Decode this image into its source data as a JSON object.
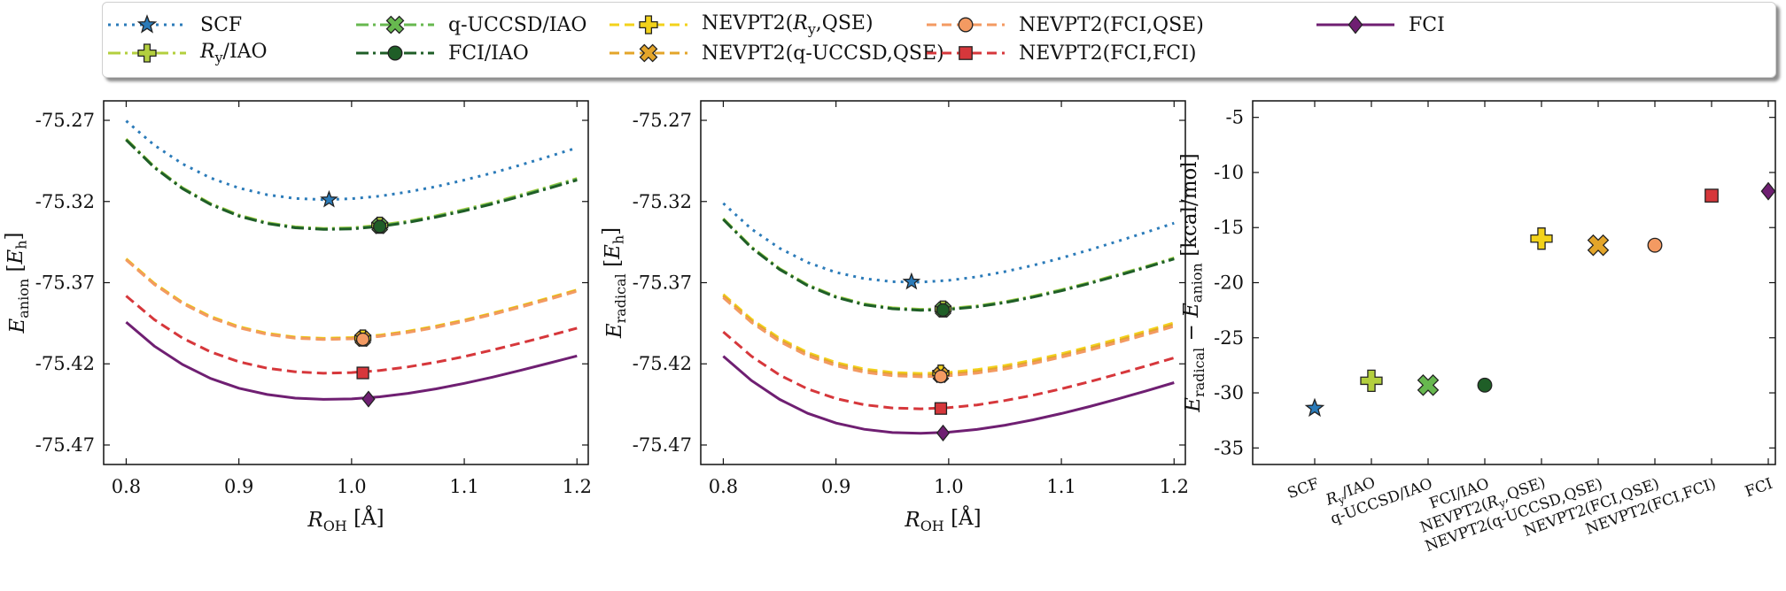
{
  "legend": {
    "entries": [
      {
        "key": "scf",
        "label": "SCF",
        "color": "#2b7bb9",
        "dash": "3,6",
        "marker": "star"
      },
      {
        "key": "ry_iao",
        "label": "Ry/IAO",
        "color": "#b3cf3e",
        "dash": "14,5,3,5",
        "marker": "plus"
      },
      {
        "key": "quccsd_iao",
        "label": "q-UCCSD/IAO",
        "color": "#67b84f",
        "dash": "14,5,3,5",
        "marker": "x"
      },
      {
        "key": "fci_iao",
        "label": "FCI/IAO",
        "color": "#1f5e27",
        "dash": "14,5,3,5",
        "marker": "circle"
      },
      {
        "key": "nevpt2_ry_qse",
        "label": "NEVPT2(Ry,QSE)",
        "color": "#f2d21b",
        "dash": "11,6",
        "marker": "plus"
      },
      {
        "key": "nevpt2_quccsd_qse",
        "label": "NEVPT2(q-UCCSD,QSE)",
        "color": "#e3a52a",
        "dash": "11,6",
        "marker": "x"
      },
      {
        "key": "nevpt2_fci_qse",
        "label": "NEVPT2(FCI,QSE)",
        "color": "#f39a62",
        "dash": "11,6",
        "marker": "circle"
      },
      {
        "key": "nevpt2_fci_fci",
        "label": "NEVPT2(FCI,FCI)",
        "color": "#d6373b",
        "dash": "11,6",
        "marker": "square"
      },
      {
        "key": "fci",
        "label": "FCI",
        "color": "#6f1f72",
        "dash": "",
        "marker": "diamond"
      }
    ]
  },
  "chart_data": [
    {
      "type": "line",
      "id": "anion",
      "xlabel": "ROH [Å]",
      "ylabel": "Eanion [Eh]",
      "xlim": [
        0.78,
        1.21
      ],
      "ylim": [
        -75.482,
        -75.258
      ],
      "xticks": [
        {
          "v": 0.8,
          "label": "0.8"
        },
        {
          "v": 0.9,
          "label": "0.9"
        },
        {
          "v": 1.0,
          "label": "1.0"
        },
        {
          "v": 1.1,
          "label": "1.1"
        },
        {
          "v": 1.2,
          "label": "1.2"
        }
      ],
      "yticks": [
        {
          "v": -75.27,
          "label": "-75.27"
        },
        {
          "v": -75.32,
          "label": "-75.32"
        },
        {
          "v": -75.37,
          "label": "-75.37"
        },
        {
          "v": -75.42,
          "label": "-75.42"
        },
        {
          "v": -75.47,
          "label": "-75.47"
        }
      ],
      "x": [
        0.8,
        0.825,
        0.85,
        0.875,
        0.9,
        0.925,
        0.95,
        0.975,
        1.0,
        1.025,
        1.05,
        1.075,
        1.1,
        1.125,
        1.15,
        1.175,
        1.2
      ],
      "series": [
        {
          "key": "scf",
          "values": [
            -75.2703,
            -75.2853,
            -75.2968,
            -75.3055,
            -75.3117,
            -75.3158,
            -75.3181,
            -75.3189,
            -75.3183,
            -75.3167,
            -75.3141,
            -75.3108,
            -75.3068,
            -75.3024,
            -75.2975,
            -75.2923,
            -75.2869
          ],
          "marker": {
            "x": 0.98,
            "y": -75.3189
          }
        },
        {
          "key": "ry_iao",
          "values": [
            -75.2815,
            -75.2985,
            -75.3115,
            -75.3213,
            -75.3283,
            -75.333,
            -75.3356,
            -75.3366,
            -75.3362,
            -75.3346,
            -75.3321,
            -75.3288,
            -75.3249,
            -75.3206,
            -75.3159,
            -75.3109,
            -75.3058
          ],
          "marker": {
            "x": 1.025,
            "y": -75.3346
          }
        },
        {
          "key": "quccsd_iao",
          "values": [
            -75.2818,
            -75.2988,
            -75.3118,
            -75.3216,
            -75.3287,
            -75.3333,
            -75.3359,
            -75.3369,
            -75.3365,
            -75.335,
            -75.3325,
            -75.3292,
            -75.3253,
            -75.321,
            -75.3163,
            -75.3113,
            -75.3062
          ],
          "marker": {
            "x": 1.025,
            "y": -75.335
          }
        },
        {
          "key": "fci_iao",
          "values": [
            -75.2821,
            -75.2991,
            -75.3121,
            -75.3219,
            -75.329,
            -75.3336,
            -75.3362,
            -75.3372,
            -75.3369,
            -75.3354,
            -75.3329,
            -75.3296,
            -75.3258,
            -75.3215,
            -75.3168,
            -75.3119,
            -75.3068
          ],
          "marker": {
            "x": 1.025,
            "y": -75.3354
          }
        },
        {
          "key": "nevpt2_ry_qse",
          "values": [
            -75.3553,
            -75.3704,
            -75.3821,
            -75.3908,
            -75.3971,
            -75.4012,
            -75.4035,
            -75.4043,
            -75.4038,
            -75.4023,
            -75.3999,
            -75.3967,
            -75.393,
            -75.3888,
            -75.3842,
            -75.3794,
            -75.3744
          ],
          "marker": {
            "x": 1.01,
            "y": -75.4041
          }
        },
        {
          "key": "nevpt2_quccsd_qse",
          "values": [
            -75.3557,
            -75.3708,
            -75.3825,
            -75.3913,
            -75.3975,
            -75.4016,
            -75.4039,
            -75.4047,
            -75.4042,
            -75.4027,
            -75.4003,
            -75.3971,
            -75.3934,
            -75.3892,
            -75.3846,
            -75.3798,
            -75.3748
          ],
          "marker": {
            "x": 1.01,
            "y": -75.4045
          }
        },
        {
          "key": "nevpt2_fci_qse",
          "values": [
            -75.356,
            -75.3711,
            -75.3828,
            -75.3916,
            -75.3978,
            -75.4019,
            -75.4042,
            -75.405,
            -75.4046,
            -75.4031,
            -75.4007,
            -75.3976,
            -75.3938,
            -75.3896,
            -75.3851,
            -75.3803,
            -75.3753
          ],
          "marker": {
            "x": 1.01,
            "y": -75.4049
          }
        },
        {
          "key": "nevpt2_fci_fci",
          "values": [
            -75.3782,
            -75.3928,
            -75.4041,
            -75.4127,
            -75.4187,
            -75.4227,
            -75.4249,
            -75.4258,
            -75.4254,
            -75.4241,
            -75.4219,
            -75.419,
            -75.4155,
            -75.4115,
            -75.4072,
            -75.4027,
            -75.398
          ],
          "marker": {
            "x": 1.01,
            "y": -75.4256
          }
        },
        {
          "key": "fci",
          "values": [
            -75.3943,
            -75.4091,
            -75.4204,
            -75.429,
            -75.435,
            -75.4389,
            -75.4411,
            -75.4419,
            -75.4416,
            -75.4403,
            -75.4382,
            -75.4354,
            -75.432,
            -75.4282,
            -75.424,
            -75.4196,
            -75.4151
          ],
          "marker": {
            "x": 1.015,
            "y": -75.4417
          }
        }
      ]
    },
    {
      "type": "line",
      "id": "radical",
      "xlabel": "ROH [Å]",
      "ylabel": "Eradical [Eh]",
      "xlim": [
        0.78,
        1.21
      ],
      "ylim": [
        -75.482,
        -75.258
      ],
      "xticks": [
        {
          "v": 0.8,
          "label": "0.8"
        },
        {
          "v": 0.9,
          "label": "0.9"
        },
        {
          "v": 1.0,
          "label": "1.0"
        },
        {
          "v": 1.1,
          "label": "1.1"
        },
        {
          "v": 1.2,
          "label": "1.2"
        }
      ],
      "yticks": [
        {
          "v": -75.27,
          "label": "-75.27"
        },
        {
          "v": -75.32,
          "label": "-75.32"
        },
        {
          "v": -75.37,
          "label": "-75.37"
        },
        {
          "v": -75.42,
          "label": "-75.42"
        },
        {
          "v": -75.47,
          "label": "-75.47"
        }
      ],
      "x": [
        0.8,
        0.825,
        0.85,
        0.875,
        0.9,
        0.925,
        0.95,
        0.975,
        1.0,
        1.025,
        1.05,
        1.075,
        1.1,
        1.125,
        1.15,
        1.175,
        1.2
      ],
      "series": [
        {
          "key": "scf",
          "values": [
            -75.3211,
            -75.3369,
            -75.3488,
            -75.3576,
            -75.3637,
            -75.3675,
            -75.3694,
            -75.3697,
            -75.3686,
            -75.3664,
            -75.3632,
            -75.3593,
            -75.3548,
            -75.3498,
            -75.3445,
            -75.339,
            -75.3333
          ],
          "marker": {
            "x": 0.967,
            "y": -75.3695
          }
        },
        {
          "key": "ry_iao",
          "values": [
            -75.3305,
            -75.3479,
            -75.3613,
            -75.3713,
            -75.3784,
            -75.383,
            -75.3855,
            -75.3864,
            -75.3859,
            -75.3843,
            -75.3817,
            -75.3783,
            -75.3743,
            -75.3699,
            -75.365,
            -75.36,
            -75.3547
          ],
          "marker": {
            "x": 0.995,
            "y": -75.3862
          }
        },
        {
          "key": "quccsd_iao",
          "values": [
            -75.3308,
            -75.3482,
            -75.3616,
            -75.3716,
            -75.3787,
            -75.3833,
            -75.3858,
            -75.3867,
            -75.3862,
            -75.3846,
            -75.382,
            -75.3786,
            -75.3746,
            -75.3702,
            -75.3653,
            -75.3603,
            -75.355
          ],
          "marker": {
            "x": 0.995,
            "y": -75.3865
          }
        },
        {
          "key": "fci_iao",
          "values": [
            -75.3311,
            -75.3485,
            -75.3619,
            -75.3719,
            -75.379,
            -75.3836,
            -75.3861,
            -75.387,
            -75.3865,
            -75.3849,
            -75.3823,
            -75.3789,
            -75.375,
            -75.3705,
            -75.3657,
            -75.3606,
            -75.3554
          ],
          "marker": {
            "x": 0.995,
            "y": -75.3868
          }
        },
        {
          "key": "nevpt2_ry_qse",
          "values": [
            -75.3772,
            -75.3925,
            -75.4043,
            -75.4131,
            -75.4192,
            -75.4232,
            -75.4253,
            -75.4259,
            -75.4253,
            -75.4236,
            -75.421,
            -75.4177,
            -75.4138,
            -75.4094,
            -75.4047,
            -75.3998,
            -75.3947
          ],
          "marker": {
            "x": 0.993,
            "y": -75.4257
          }
        },
        {
          "key": "nevpt2_quccsd_qse",
          "values": [
            -75.3782,
            -75.3935,
            -75.4053,
            -75.4141,
            -75.4202,
            -75.4242,
            -75.4263,
            -75.427,
            -75.4264,
            -75.4247,
            -75.4221,
            -75.4188,
            -75.4149,
            -75.4105,
            -75.4058,
            -75.4009,
            -75.3958
          ],
          "marker": {
            "x": 0.993,
            "y": -75.4268
          }
        },
        {
          "key": "nevpt2_fci_qse",
          "values": [
            -75.3792,
            -75.3945,
            -75.4063,
            -75.4151,
            -75.4212,
            -75.4252,
            -75.4273,
            -75.428,
            -75.4274,
            -75.4257,
            -75.4232,
            -75.4198,
            -75.4159,
            -75.4116,
            -75.4069,
            -75.402,
            -75.3969
          ],
          "marker": {
            "x": 0.993,
            "y": -75.4278
          }
        },
        {
          "key": "nevpt2_fci_fci",
          "values": [
            -75.4003,
            -75.4153,
            -75.4269,
            -75.4355,
            -75.4414,
            -75.4452,
            -75.4472,
            -75.4477,
            -75.447,
            -75.4453,
            -75.4426,
            -75.4393,
            -75.4354,
            -75.431,
            -75.4263,
            -75.4214,
            -75.4163
          ],
          "marker": {
            "x": 0.993,
            "y": -75.4475
          }
        },
        {
          "key": "fci",
          "values": [
            -75.4153,
            -75.4303,
            -75.4419,
            -75.4505,
            -75.4565,
            -75.4603,
            -75.4623,
            -75.4628,
            -75.4621,
            -75.4604,
            -75.4578,
            -75.4545,
            -75.4506,
            -75.4463,
            -75.4416,
            -75.4367,
            -75.4316
          ],
          "marker": {
            "x": 0.995,
            "y": -75.4626
          }
        }
      ]
    },
    {
      "type": "scatter",
      "id": "gap",
      "ylabel": "Eradical − Eanion [kcal/mol]",
      "ylim": [
        -36.5,
        -3.5
      ],
      "yticks": [
        {
          "v": -5,
          "label": "-5"
        },
        {
          "v": -10,
          "label": "-10"
        },
        {
          "v": -15,
          "label": "-15"
        },
        {
          "v": -20,
          "label": "-20"
        },
        {
          "v": -25,
          "label": "-25"
        },
        {
          "v": -30,
          "label": "-30"
        },
        {
          "v": -35,
          "label": "-35"
        }
      ],
      "categories": [
        "SCF",
        "Ry/IAO",
        "q-UCCSD/IAO",
        "FCI/IAO",
        "NEVPT2(Ry,QSE)",
        "NEVPT2(q-UCCSD,QSE)",
        "NEVPT2(FCI,QSE)",
        "NEVPT2(FCI,FCI)",
        "FCI"
      ],
      "keys": [
        "scf",
        "ry_iao",
        "quccsd_iao",
        "fci_iao",
        "nevpt2_ry_qse",
        "nevpt2_quccsd_qse",
        "nevpt2_fci_qse",
        "nevpt2_fci_fci",
        "fci"
      ],
      "values": [
        -31.4,
        -28.9,
        -29.3,
        -29.3,
        -16.0,
        -16.6,
        -16.6,
        -12.1,
        -11.7
      ]
    }
  ]
}
